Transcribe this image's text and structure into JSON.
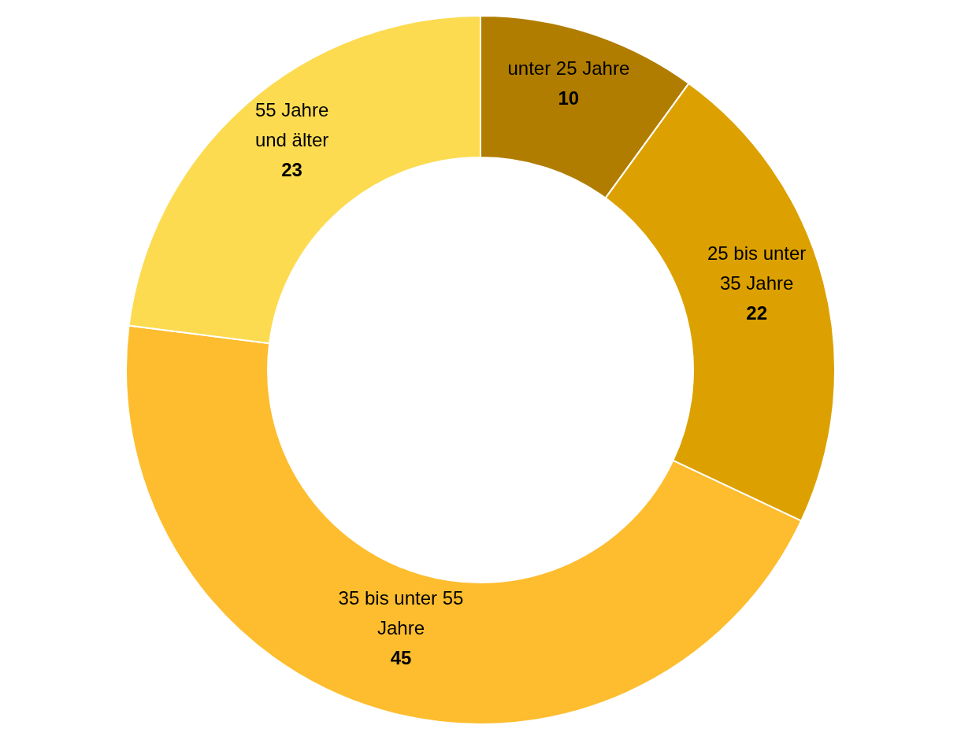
{
  "chart_data": {
    "type": "donut",
    "categories": [
      "unter 25 Jahre",
      "25 bis unter 35 Jahre",
      "35 bis unter 55 Jahre",
      "55 Jahre und älter"
    ],
    "values": [
      10,
      22,
      45,
      23
    ],
    "colors": [
      "#b07d00",
      "#dca100",
      "#fdbd2e",
      "#fcdb50"
    ],
    "data_labels": true
  }
}
